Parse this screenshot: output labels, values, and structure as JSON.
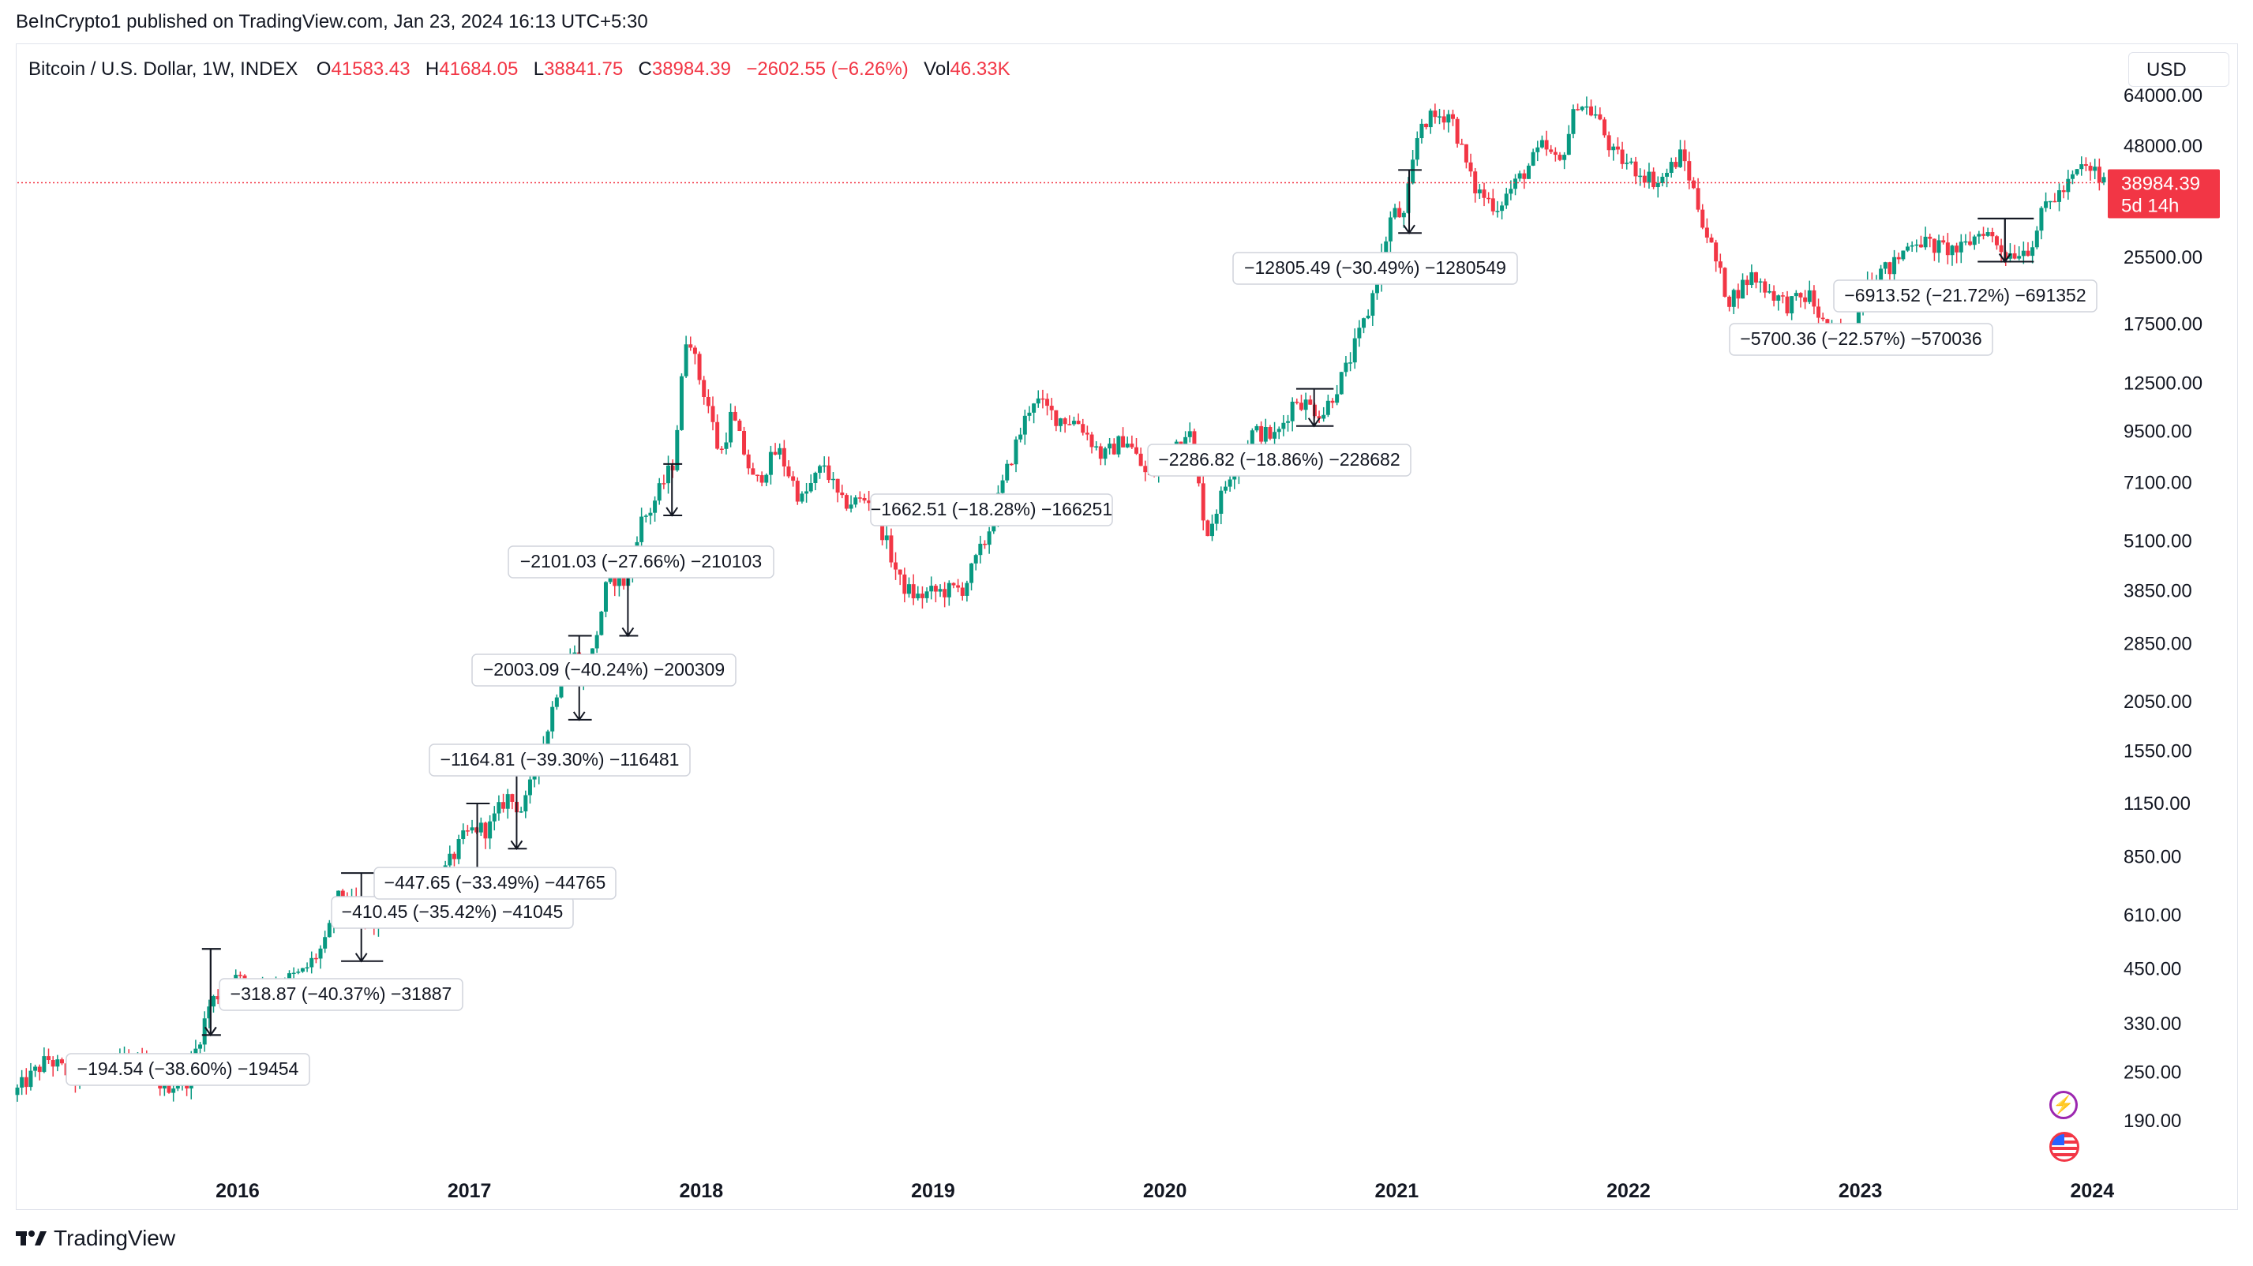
{
  "header": {
    "published": "BeInCrypto1 published on TradingView.com, Jan 23, 2024 16:13 UTC+5:30"
  },
  "legend": {
    "symbol": "Bitcoin / U.S. Dollar, 1W, INDEX",
    "o_label": "O",
    "o_value": "41583.43",
    "h_label": "H",
    "h_value": "41684.05",
    "l_label": "L",
    "l_value": "38841.75",
    "c_label": "C",
    "c_value": "38984.39",
    "change": "−2602.55 (−6.26%)",
    "vol_label": "Vol",
    "vol_value": "46.33K"
  },
  "currency_button": "USD",
  "price_tag": {
    "price": "38984.39",
    "countdown": "5d 14h"
  },
  "footer": {
    "brand": "TradingView"
  },
  "colors": {
    "up": "#089981",
    "down": "#f23645",
    "grid_line": "#f23645",
    "annotation_border": "#d1d4dc"
  },
  "icons": [
    "lightning-icon",
    "us-flag-icon",
    "tradingview-logo-icon"
  ],
  "chart_data": {
    "type": "candlestick",
    "title": "Bitcoin / U.S. Dollar, 1W, INDEX",
    "y_scale": "log",
    "ylim": [
      140,
      70000
    ],
    "y_ticks": [
      "64000.00",
      "48000.00",
      "25500.00",
      "17500.00",
      "12500.00",
      "9500.00",
      "7100.00",
      "5100.00",
      "3850.00",
      "2850.00",
      "2050.00",
      "1550.00",
      "1150.00",
      "850.00",
      "610.00",
      "450.00",
      "330.00",
      "250.00",
      "190.00"
    ],
    "x_ticks": [
      "2016",
      "2017",
      "2018",
      "2019",
      "2020",
      "2021",
      "2022",
      "2023",
      "2024"
    ],
    "xlim": [
      2015.05,
      2024.05
    ],
    "current_price": 38984.39,
    "price_path": [
      [
        2015.05,
        220
      ],
      [
        2015.2,
        270
      ],
      [
        2015.35,
        235
      ],
      [
        2015.5,
        280
      ],
      [
        2015.62,
        260
      ],
      [
        2015.7,
        230
      ],
      [
        2015.8,
        240
      ],
      [
        2015.9,
        370
      ],
      [
        2016.0,
        430
      ],
      [
        2016.1,
        400
      ],
      [
        2016.2,
        415
      ],
      [
        2016.3,
        440
      ],
      [
        2016.4,
        520
      ],
      [
        2016.45,
        670
      ],
      [
        2016.5,
        660
      ],
      [
        2016.55,
        600
      ],
      [
        2016.6,
        580
      ],
      [
        2016.7,
        615
      ],
      [
        2016.8,
        700
      ],
      [
        2016.9,
        760
      ],
      [
        2017.0,
        960
      ],
      [
        2017.05,
        1000
      ],
      [
        2017.1,
        990
      ],
      [
        2017.18,
        1200
      ],
      [
        2017.25,
        1100
      ],
      [
        2017.35,
        1700
      ],
      [
        2017.42,
        2500
      ],
      [
        2017.47,
        2700
      ],
      [
        2017.5,
        2300
      ],
      [
        2017.55,
        2700
      ],
      [
        2017.62,
        4200
      ],
      [
        2017.7,
        4000
      ],
      [
        2017.75,
        5600
      ],
      [
        2017.8,
        6100
      ],
      [
        2017.9,
        8000
      ],
      [
        2017.96,
        17500
      ],
      [
        2018.0,
        13500
      ],
      [
        2018.05,
        11000
      ],
      [
        2018.1,
        8200
      ],
      [
        2018.15,
        10500
      ],
      [
        2018.25,
        7000
      ],
      [
        2018.35,
        8600
      ],
      [
        2018.45,
        6400
      ],
      [
        2018.55,
        7900
      ],
      [
        2018.62,
        6300
      ],
      [
        2018.75,
        6500
      ],
      [
        2018.88,
        4000
      ],
      [
        2018.95,
        3700
      ],
      [
        2019.0,
        3800
      ],
      [
        2019.15,
        3900
      ],
      [
        2019.25,
        5200
      ],
      [
        2019.35,
        8000
      ],
      [
        2019.45,
        11500
      ],
      [
        2019.55,
        10300
      ],
      [
        2019.65,
        10000
      ],
      [
        2019.75,
        8200
      ],
      [
        2019.85,
        9200
      ],
      [
        2019.95,
        7200
      ],
      [
        2020.05,
        8700
      ],
      [
        2020.12,
        9800
      ],
      [
        2020.2,
        5300
      ],
      [
        2020.3,
        7500
      ],
      [
        2020.4,
        9500
      ],
      [
        2020.5,
        9200
      ],
      [
        2020.58,
        11500
      ],
      [
        2020.7,
        10500
      ],
      [
        2020.8,
        13500
      ],
      [
        2020.9,
        19000
      ],
      [
        2021.0,
        33000
      ],
      [
        2021.05,
        32000
      ],
      [
        2021.12,
        55000
      ],
      [
        2021.25,
        58000
      ],
      [
        2021.35,
        38000
      ],
      [
        2021.45,
        34000
      ],
      [
        2021.55,
        40000
      ],
      [
        2021.65,
        48000
      ],
      [
        2021.72,
        43000
      ],
      [
        2021.8,
        62000
      ],
      [
        2021.88,
        57000
      ],
      [
        2021.95,
        46000
      ],
      [
        2022.05,
        42000
      ],
      [
        2022.15,
        39000
      ],
      [
        2022.25,
        46000
      ],
      [
        2022.35,
        30000
      ],
      [
        2022.45,
        20000
      ],
      [
        2022.55,
        23000
      ],
      [
        2022.7,
        19500
      ],
      [
        2022.8,
        20500
      ],
      [
        2022.88,
        16500
      ],
      [
        2022.98,
        16600
      ],
      [
        2023.05,
        23000
      ],
      [
        2023.15,
        24000
      ],
      [
        2023.25,
        28500
      ],
      [
        2023.35,
        27000
      ],
      [
        2023.45,
        26500
      ],
      [
        2023.55,
        30000
      ],
      [
        2023.65,
        26000
      ],
      [
        2023.75,
        27000
      ],
      [
        2023.82,
        34500
      ],
      [
        2023.9,
        37500
      ],
      [
        2023.97,
        42500
      ],
      [
        2024.03,
        41600
      ],
      [
        2024.06,
        38984
      ]
    ],
    "drawdowns": [
      {
        "label": "−194.54 (−38.60%) −19454",
        "x_start": 2015.86,
        "x_end": 2015.88,
        "high": 504,
        "low": 309
      },
      {
        "label": "−318.87 (−40.37%) −31887",
        "x_start": 2015.86,
        "x_end": 2015.88,
        "high": 504,
        "low": 309
      },
      {
        "label": "−410.45 (−35.42%) −41045",
        "x_start": 2016.46,
        "x_end": 2016.58,
        "high": 775,
        "low": 470
      },
      {
        "label": "−447.65 (−33.49%) −44765",
        "x_start": 2017.0,
        "x_end": 2017.04,
        "high": 1150,
        "low": 760
      },
      {
        "label": "−1164.81 (−39.30%) −116481",
        "x_start": 2017.18,
        "x_end": 2017.2,
        "high": 1350,
        "low": 890
      },
      {
        "label": "−2003.09 (−40.24%) −200309",
        "x_start": 2017.44,
        "x_end": 2017.48,
        "high": 2980,
        "low": 1850
      },
      {
        "label": "−2101.03 (−27.66%) −210103",
        "x_start": 2017.66,
        "x_end": 2017.68,
        "high": 4700,
        "low": 2980
      },
      {
        "label": "−1662.51 (−18.28%) −166251",
        "x_start": 2017.85,
        "x_end": 2017.87,
        "high": 7900,
        "low": 5900
      },
      {
        "label": "−2286.82 (−18.86%) −228682",
        "x_start": 2020.58,
        "x_end": 2020.68,
        "high": 12100,
        "low": 9800
      },
      {
        "label": "−12805.49 (−30.49%) −1280549",
        "x_start": 2021.02,
        "x_end": 2021.06,
        "high": 41900,
        "low": 29300
      },
      {
        "label": "−5700.36 (−22.57%) −570036",
        "x_start": 2023.52,
        "x_end": 2023.7,
        "high": 31800,
        "low": 24900
      },
      {
        "label": "−6913.52 (−21.72%) −691352",
        "x_start": 2023.52,
        "x_end": 2023.7,
        "high": 31800,
        "low": 24900
      }
    ]
  }
}
